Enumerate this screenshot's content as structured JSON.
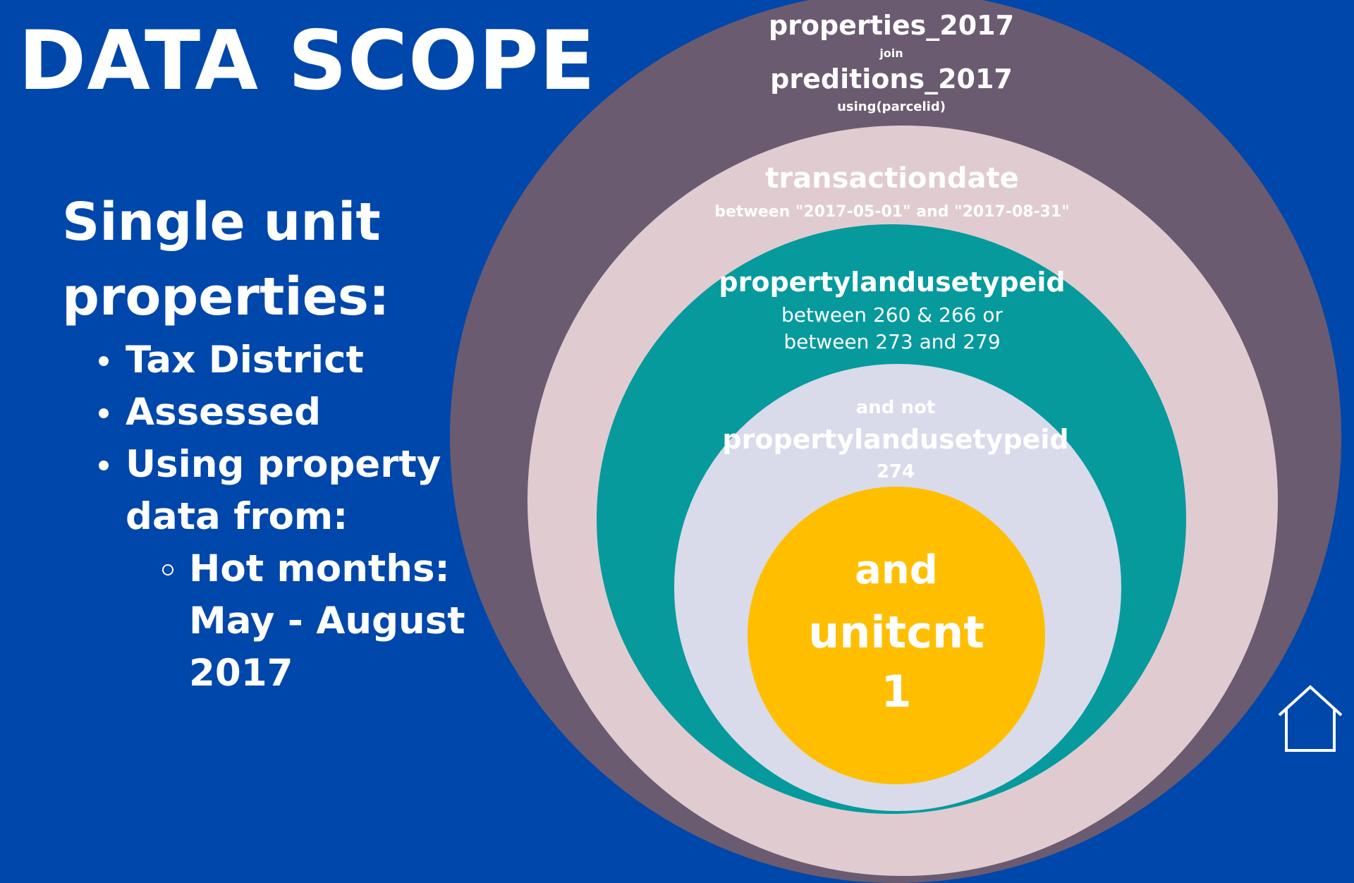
{
  "title": "DATA SCOPE",
  "left_panel": {
    "heading_line1": "Single unit",
    "heading_line2": "properties:",
    "bullets": [
      {
        "text": "Tax District"
      },
      {
        "text": "Assessed"
      },
      {
        "text": "Using property"
      },
      {
        "text": "data from:"
      },
      {
        "text": "Hot months:"
      },
      {
        "text": "May - August"
      },
      {
        "text": "2017"
      }
    ]
  },
  "rings": {
    "outer": {
      "line1": "properties_2017",
      "join": "join",
      "line2": "preditions_2017",
      "using": "using(parcelid)"
    },
    "second": {
      "field": "transactiondate",
      "condition": "between \"2017-05-01\" and \"2017-08-31\""
    },
    "third": {
      "field": "propertylandusetypeid",
      "condition_line1": "between 260 & 266 or",
      "condition_line2": "between 273 and 279"
    },
    "fourth": {
      "prefix": "and not",
      "field": "propertylandusetypeid",
      "value": "274"
    },
    "core": {
      "line1": "and",
      "line2": "unitcnt",
      "line3": "1"
    }
  },
  "colors": {
    "background": "#0047ab",
    "outer_ring": "#6b5b70",
    "second_ring": "#e0ccd0",
    "third_ring": "#069a9d",
    "fourth_ring": "#d9dbea",
    "core": "#ffbf00",
    "text": "#ffffff"
  },
  "icons": {
    "corner": "home-icon"
  }
}
